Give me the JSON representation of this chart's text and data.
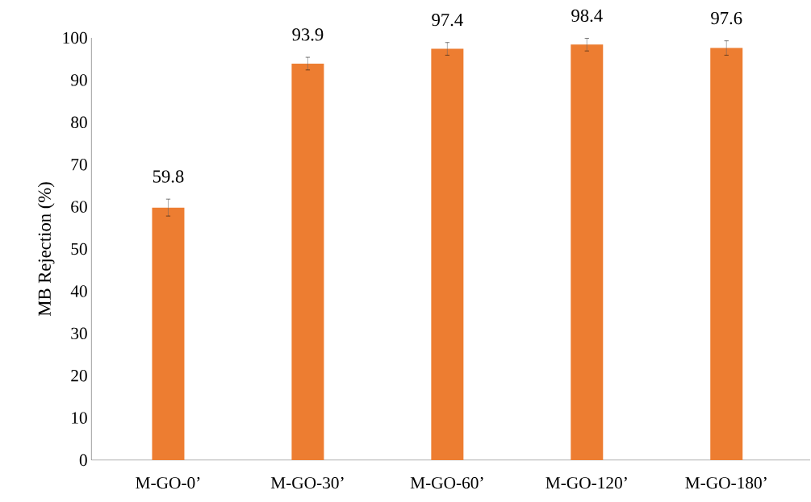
{
  "chart_data": {
    "type": "bar",
    "ylabel": "MB Rejection (%)",
    "categories": [
      "M-GO-0’",
      "M-GO-30’",
      "M-GO-60’",
      "M-GO-120’",
      "M-GO-180’"
    ],
    "values": [
      59.8,
      93.9,
      97.4,
      98.4,
      97.6
    ],
    "errors": [
      2,
      1.5,
      1.5,
      1.5,
      1.7
    ],
    "color": "#ed7d31",
    "ylim": [
      0,
      100
    ],
    "yticks": [
      0,
      10,
      20,
      30,
      40,
      50,
      60,
      70,
      80,
      90,
      100
    ],
    "data_labels": true,
    "grid": false
  }
}
